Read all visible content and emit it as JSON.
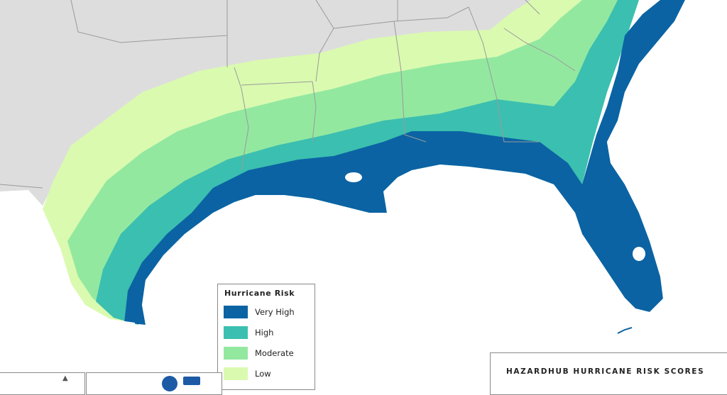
{
  "legend": {
    "title": "Hurricane Risk",
    "items": [
      {
        "label": "Very High",
        "color": "#0b63a3"
      },
      {
        "label": "High",
        "color": "#3bbfb0"
      },
      {
        "label": "Moderate",
        "color": "#93e8a0"
      },
      {
        "label": "Low",
        "color": "#dafab0"
      }
    ]
  },
  "map_title": "HAZARDHUB HURRICANE RISK SCORES",
  "colors": {
    "background_land": "#dddddd",
    "water": "#ffffff",
    "state_border": "#9a9a9a",
    "very_high": "#0b63a3",
    "high": "#3bbfb0",
    "moderate": "#93e8a0",
    "low": "#dafab0"
  },
  "icons": [
    "north-arrow-icon",
    "agency-logo-icon"
  ]
}
